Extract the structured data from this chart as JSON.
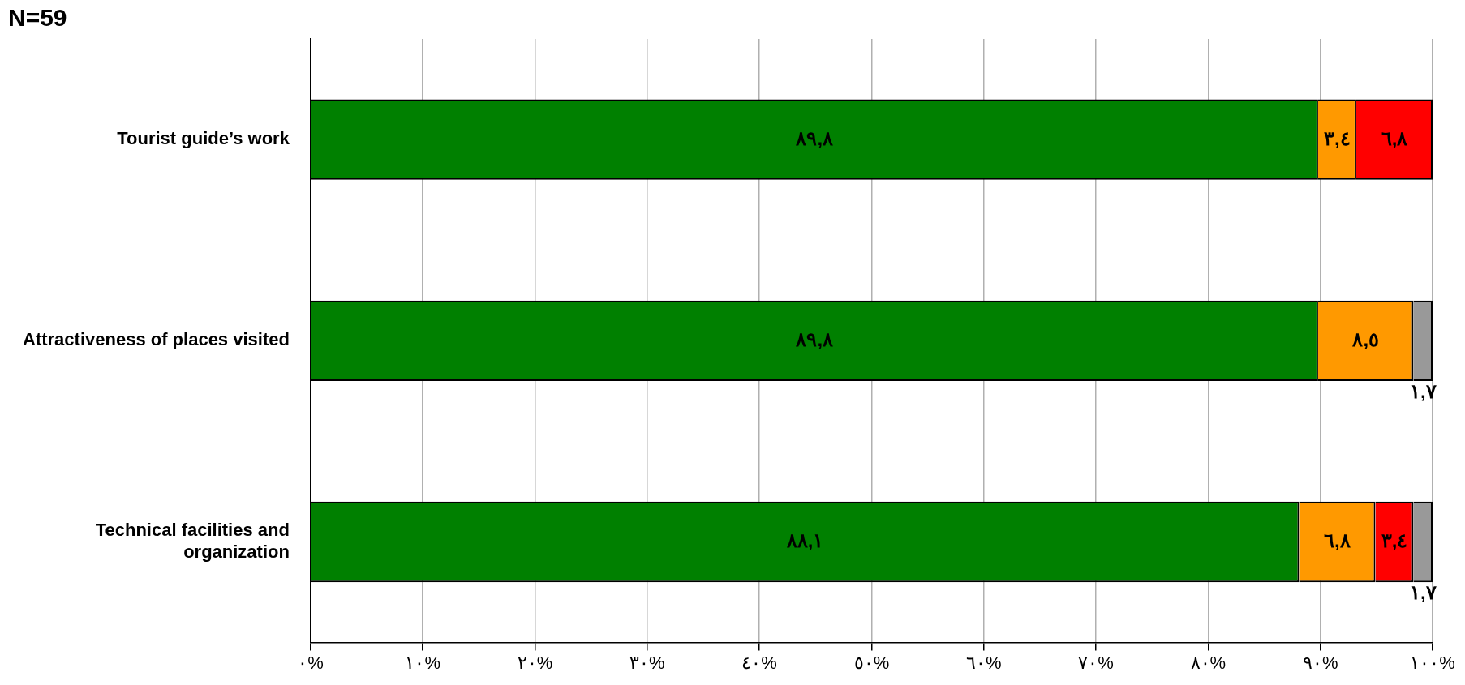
{
  "chart_data": {
    "type": "bar",
    "orientation": "horizontal",
    "stacked": true,
    "title": "N=59",
    "categories": [
      "Tourist guide’s work",
      "Attractiveness of places visited",
      "Technical facilities and organization"
    ],
    "series": [
      {
        "color": "#008000",
        "values": [
          89.8,
          89.8,
          88.1
        ],
        "value_labels": [
          "٨٩,٨",
          "٨٩,٨",
          "٨٨,١"
        ]
      },
      {
        "color": "#ff9900",
        "values": [
          3.4,
          8.5,
          6.8
        ],
        "value_labels": [
          "٣,٤",
          "٨,٥",
          "٦,٨"
        ]
      },
      {
        "color": "#ff0000",
        "values": [
          6.8,
          null,
          3.4
        ],
        "value_labels": [
          "٦,٨",
          null,
          "٣,٤"
        ]
      },
      {
        "color": "#999999",
        "values": [
          null,
          1.7,
          1.7
        ],
        "value_labels": [
          null,
          "١,٧",
          "١,٧"
        ]
      }
    ],
    "xlim": [
      0,
      100
    ],
    "xticks": [
      {
        "value": 0,
        "label": "٠%"
      },
      {
        "value": 10,
        "label": "١٠%"
      },
      {
        "value": 20,
        "label": "٢٠%"
      },
      {
        "value": 30,
        "label": "٣٠%"
      },
      {
        "value": 40,
        "label": "٤٠%"
      },
      {
        "value": 50,
        "label": "٥٠%"
      },
      {
        "value": 60,
        "label": "٦٠%"
      },
      {
        "value": 70,
        "label": "٧٠%"
      },
      {
        "value": 80,
        "label": "٨٠%"
      },
      {
        "value": 90,
        "label": "٩٠%"
      },
      {
        "value": 100,
        "label": "١٠٠%"
      }
    ],
    "grid": "x"
  }
}
